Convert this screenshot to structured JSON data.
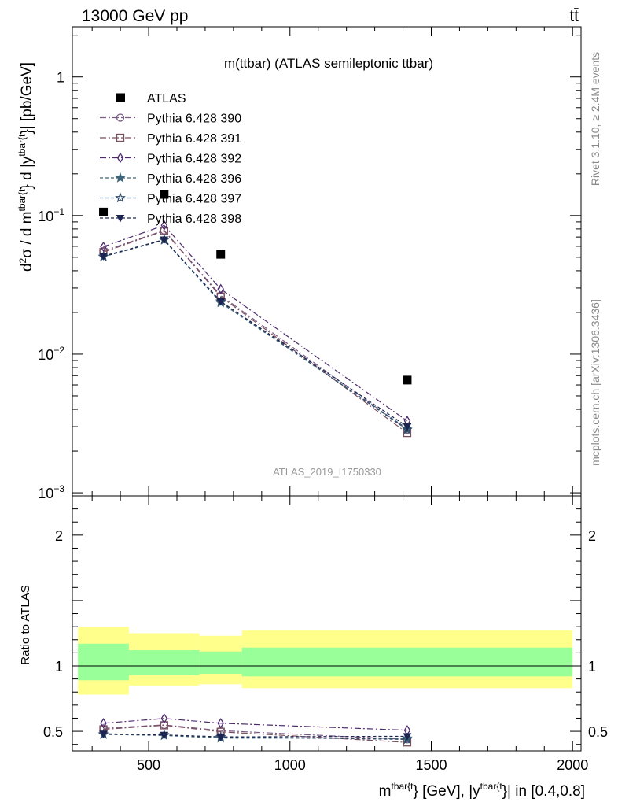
{
  "header": {
    "left": "13000 GeV pp",
    "right": "tt̄"
  },
  "side_labels": {
    "rivet": "Rivet 3.1.10, ≥ 2.4M events",
    "mcplots": "mcplots.cern.ch [arXiv:1306.3436]"
  },
  "chart_data": [
    {
      "type": "scatter",
      "title": "m(ttbar) (ATLAS semileptonic ttbar)",
      "watermark": "ATLAS_2019_I1750330",
      "ylabel": "d²σ / d m^{tbar{t}} d |y^{tbar{t}}| [pb/GeV]",
      "xlabel": "m^{tbar{t}} [GeV], |y^{tbar{t}}| in [0.4,0.8]",
      "xlim": [
        230,
        2030
      ],
      "ylim": [
        0.00095,
        2.3
      ],
      "yscale": "log",
      "yticks": [
        {
          "v": 0.001,
          "base": "10",
          "exp": "−3"
        },
        {
          "v": 0.01,
          "base": "10",
          "exp": "−2"
        },
        {
          "v": 0.1,
          "base": "10",
          "exp": "−1"
        },
        {
          "v": 1,
          "label": "1"
        }
      ],
      "data": {
        "name": "ATLAS",
        "x": [
          340,
          555,
          755,
          1415
        ],
        "y": [
          0.106,
          0.142,
          0.0525,
          0.0065
        ]
      },
      "series": [
        {
          "name": "Pythia 6.428 390",
          "color": "#7a5a86",
          "dash": "8,3,2,3",
          "marker": "circle",
          "x": [
            340,
            555,
            755,
            1415
          ],
          "y": [
            0.0555,
            0.078,
            0.0265,
            0.00285
          ]
        },
        {
          "name": "Pythia 6.428 391",
          "color": "#7a4f5c",
          "dash": "8,3,2,3",
          "marker": "square",
          "x": [
            340,
            555,
            755,
            1415
          ],
          "y": [
            0.0545,
            0.0775,
            0.026,
            0.0027
          ]
        },
        {
          "name": "Pythia 6.428 392",
          "color": "#4d2b6e",
          "dash": "8,3,2,3",
          "marker": "diamond",
          "x": [
            340,
            555,
            755,
            1415
          ],
          "y": [
            0.0595,
            0.085,
            0.0295,
            0.0033
          ]
        },
        {
          "name": "Pythia 6.428 396",
          "color": "#3d6478",
          "dash": "4,3",
          "marker": "star",
          "x": [
            340,
            555,
            755,
            1415
          ],
          "y": [
            0.0505,
            0.0665,
            0.0235,
            0.0029
          ]
        },
        {
          "name": "Pythia 6.428 397",
          "color": "#2e4b6b",
          "dash": "4,3",
          "marker": "star-open",
          "x": [
            340,
            555,
            755,
            1415
          ],
          "y": [
            0.0505,
            0.067,
            0.024,
            0.00285
          ]
        },
        {
          "name": "Pythia 6.428 398",
          "color": "#1c2450",
          "dash": "4,3",
          "marker": "triangle-down",
          "x": [
            340,
            555,
            755,
            1415
          ],
          "y": [
            0.051,
            0.067,
            0.024,
            0.003
          ]
        }
      ]
    },
    {
      "type": "scatter",
      "ylabel": "Ratio to ATLAS",
      "xlim": [
        230,
        2030
      ],
      "ylim": [
        0.35,
        2.3
      ],
      "yticks": [
        0.5,
        1,
        2
      ],
      "xticks": [
        500,
        1000,
        1500,
        2000
      ],
      "bands": [
        {
          "x0": 250,
          "x1": 430,
          "yellow": [
            0.78,
            1.3
          ],
          "green": [
            0.89,
            1.17
          ]
        },
        {
          "x0": 430,
          "x1": 680,
          "yellow": [
            0.85,
            1.25
          ],
          "green": [
            0.93,
            1.12
          ]
        },
        {
          "x0": 680,
          "x1": 830,
          "yellow": [
            0.86,
            1.23
          ],
          "green": [
            0.94,
            1.11
          ]
        },
        {
          "x0": 830,
          "x1": 2000,
          "yellow": [
            0.83,
            1.27
          ],
          "green": [
            0.92,
            1.14
          ]
        }
      ],
      "ratios": [
        {
          "y": [
            0.523,
            0.549,
            0.505,
            0.438
          ]
        },
        {
          "y": [
            0.515,
            0.546,
            0.496,
            0.415
          ]
        },
        {
          "y": [
            0.562,
            0.598,
            0.562,
            0.508
          ]
        },
        {
          "y": [
            0.477,
            0.468,
            0.448,
            0.446
          ]
        },
        {
          "y": [
            0.477,
            0.472,
            0.457,
            0.438
          ]
        },
        {
          "y": [
            0.481,
            0.472,
            0.457,
            0.462
          ]
        }
      ]
    }
  ]
}
